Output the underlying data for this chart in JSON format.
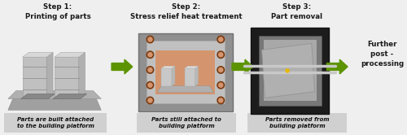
{
  "bg_color": "#efefef",
  "step1_title": "Step 1:\nPrinting of parts",
  "step2_title": "Step 2:\nStress relief heat treatment",
  "step3_title": "Step 3:\nPart removal",
  "step4_title": "Further\npost -\nprocessing",
  "caption1": "Parts are built attached\nto the building platform",
  "caption2": "Parts still attached to\nbuilding platform",
  "caption3": "Parts removed from\nbuilding platform",
  "arrow_color": "#5c9400",
  "caption_bg": "#d0d0d0",
  "oven_outer": "#888888",
  "oven_inner": "#b0b0b0",
  "oven_interior": "#d4956e",
  "oven_element_fill": "#d4956e",
  "oven_element_edge": "#7a3a10",
  "dark_box_outer": "#1e1e1e",
  "dark_box_inner": "#606060",
  "platform_base": "#969696",
  "platform_top": "#b8b8b8"
}
